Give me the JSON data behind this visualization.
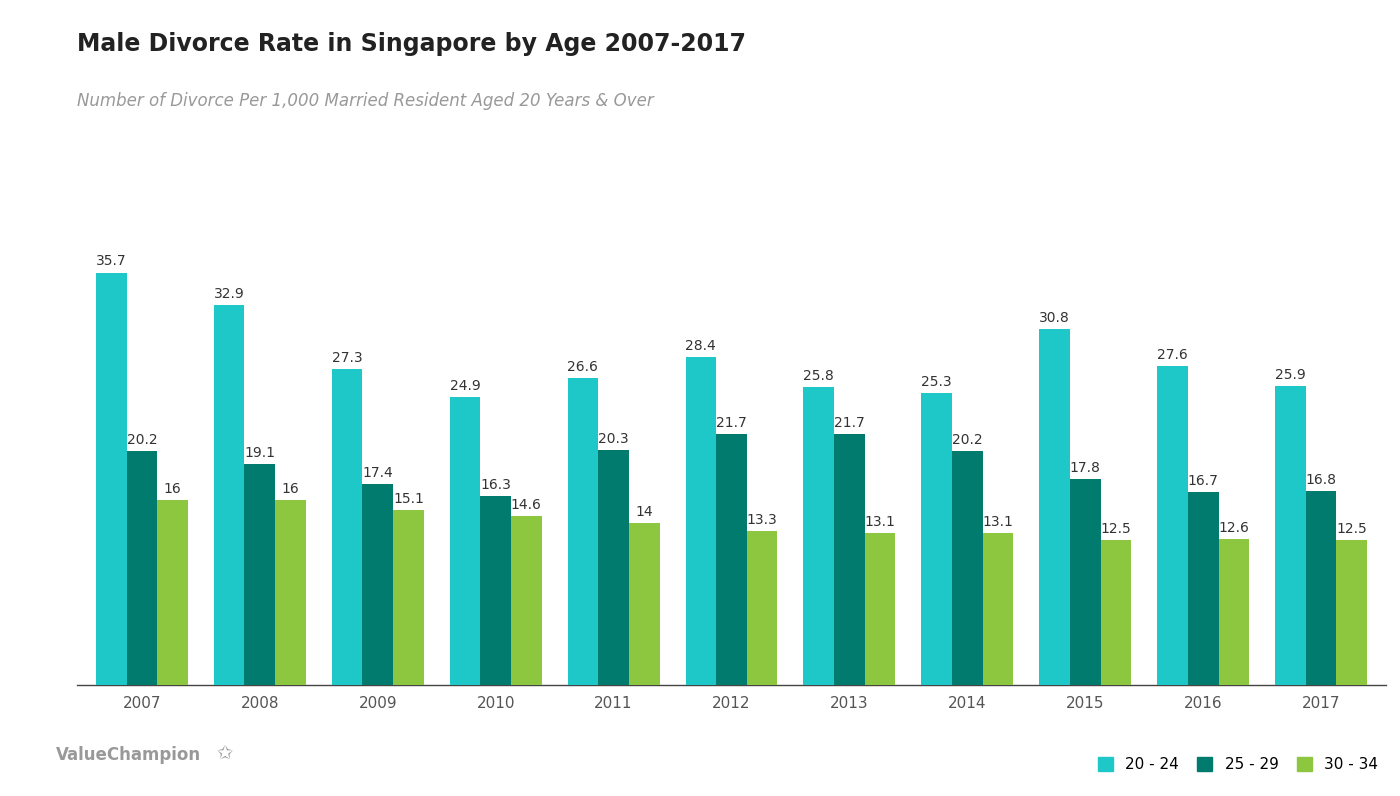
{
  "title": "Male Divorce Rate in Singapore by Age 2007-2017",
  "subtitle": "Number of Divorce Per 1,000 Married Resident Aged 20 Years & Over",
  "years": [
    2007,
    2008,
    2009,
    2010,
    2011,
    2012,
    2013,
    2014,
    2015,
    2016,
    2017
  ],
  "series": {
    "20 - 24": [
      35.7,
      32.9,
      27.3,
      24.9,
      26.6,
      28.4,
      25.8,
      25.3,
      30.8,
      27.6,
      25.9
    ],
    "25 - 29": [
      20.2,
      19.1,
      17.4,
      16.3,
      20.3,
      21.7,
      21.7,
      20.2,
      17.8,
      16.7,
      16.8
    ],
    "30 - 34": [
      16.0,
      16.0,
      15.1,
      14.6,
      14.0,
      13.3,
      13.1,
      13.1,
      12.5,
      12.6,
      12.5
    ]
  },
  "labels": {
    "20 - 24": [
      "35.7",
      "32.9",
      "27.3",
      "24.9",
      "26.6",
      "28.4",
      "25.8",
      "25.3",
      "30.8",
      "27.6",
      "25.9"
    ],
    "25 - 29": [
      "20.2",
      "19.1",
      "17.4",
      "16.3",
      "20.3",
      "21.7",
      "21.7",
      "20.2",
      "17.8",
      "16.7",
      "16.8"
    ],
    "30 - 34": [
      "16",
      "16",
      "15.1",
      "14.6",
      "14",
      "13.3",
      "13.1",
      "13.1",
      "12.5",
      "12.6",
      "12.5"
    ]
  },
  "colors": {
    "20 - 24": "#1EC8C8",
    "25 - 29": "#007B6E",
    "30 - 34": "#8DC63F"
  },
  "ylim": [
    0,
    40
  ],
  "bar_width": 0.26,
  "background_color": "#ffffff",
  "title_fontsize": 17,
  "subtitle_fontsize": 12,
  "label_fontsize": 10,
  "tick_fontsize": 11,
  "legend_fontsize": 11,
  "watermark": "ValueChampion"
}
